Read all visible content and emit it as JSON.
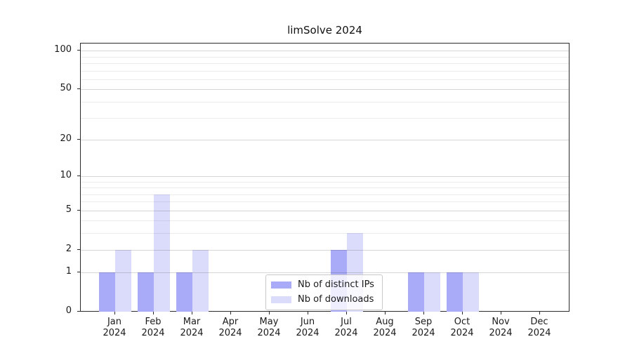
{
  "title": "limSolve 2024",
  "colors": {
    "bar_distinct_ips": "#a9abf8",
    "bar_downloads": "#dbdcfb",
    "axis": "#2b2b2b"
  },
  "legend": {
    "items": [
      {
        "label": "Nb of distinct IPs"
      },
      {
        "label": "Nb of downloads"
      }
    ]
  },
  "y_axis": {
    "ticks": [
      {
        "label": "100",
        "v": 100
      },
      {
        "label": "50",
        "v": 50
      },
      {
        "label": "20",
        "v": 20
      },
      {
        "label": "10",
        "v": 10
      },
      {
        "label": "5",
        "v": 5
      },
      {
        "label": "2",
        "v": 2
      },
      {
        "label": "1",
        "v": 1
      },
      {
        "label": "0",
        "v": 0
      }
    ],
    "minor_grid": [
      3,
      4,
      6,
      7,
      8,
      9,
      30,
      40,
      60,
      70,
      80,
      90
    ]
  },
  "x_axis": {
    "months": [
      {
        "m": "Jan",
        "y": "2024"
      },
      {
        "m": "Feb",
        "y": "2024"
      },
      {
        "m": "Mar",
        "y": "2024"
      },
      {
        "m": "Apr",
        "y": "2024"
      },
      {
        "m": "May",
        "y": "2024"
      },
      {
        "m": "Jun",
        "y": "2024"
      },
      {
        "m": "Jul",
        "y": "2024"
      },
      {
        "m": "Aug",
        "y": "2024"
      },
      {
        "m": "Sep",
        "y": "2024"
      },
      {
        "m": "Oct",
        "y": "2024"
      },
      {
        "m": "Nov",
        "y": "2024"
      },
      {
        "m": "Dec",
        "y": "2024"
      }
    ]
  },
  "chart_data": {
    "type": "bar",
    "title": "limSolve 2024",
    "categories": [
      "Jan 2024",
      "Feb 2024",
      "Mar 2024",
      "Apr 2024",
      "May 2024",
      "Jun 2024",
      "Jul 2024",
      "Aug 2024",
      "Sep 2024",
      "Oct 2024",
      "Nov 2024",
      "Dec 2024"
    ],
    "series": [
      {
        "name": "Nb of distinct IPs",
        "color": "#a9abf8",
        "values": [
          1,
          1,
          1,
          0,
          0,
          0,
          2,
          0,
          1,
          1,
          0,
          0
        ]
      },
      {
        "name": "Nb of downloads",
        "color": "#dbdcfb",
        "values": [
          2,
          7,
          2,
          0,
          0,
          0,
          3,
          0,
          1,
          1,
          0,
          0
        ]
      }
    ],
    "xlabel": "",
    "ylabel": "",
    "y_scale": "log1p",
    "y_ticks_labeled": [
      0,
      1,
      2,
      5,
      10,
      20,
      50,
      100
    ],
    "ylim": [
      0,
      114
    ],
    "grid": true,
    "legend_position": "lower-center-inside"
  }
}
